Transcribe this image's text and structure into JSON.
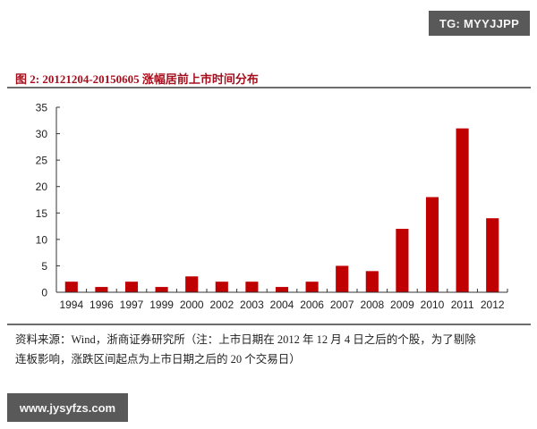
{
  "watermarks": {
    "top_right": "TG: MYYJJPP",
    "bottom_left": "www.jysyfzs.com"
  },
  "figure": {
    "title": "图 2: 20121204-20150605 涨幅居前上市时间分布",
    "title_color": "#a50f1d",
    "source_line1": "资料来源：Wind，浙商证券研究所（注：上市日期在 2012 年 12 月 4 日之后的个股，为了剔除",
    "source_line2": "连板影响，涨跌区间起点为上市日期之后的 20 个交易日）"
  },
  "chart_data": {
    "type": "bar",
    "title": "20121204-20150605 涨幅居前上市时间分布",
    "xlabel": "",
    "ylabel": "",
    "categories": [
      "1994",
      "1996",
      "1997",
      "1999",
      "2000",
      "2002",
      "2003",
      "2004",
      "2006",
      "2007",
      "2008",
      "2009",
      "2010",
      "2011",
      "2012"
    ],
    "values": [
      2,
      1,
      2,
      1,
      3,
      2,
      2,
      1,
      2,
      5,
      4,
      12,
      18,
      31,
      14
    ],
    "ylim": [
      0,
      35
    ],
    "yticks": [
      0,
      5,
      10,
      15,
      20,
      25,
      30,
      35
    ],
    "grid": false,
    "legend": null,
    "bar_color": "#c00000"
  }
}
